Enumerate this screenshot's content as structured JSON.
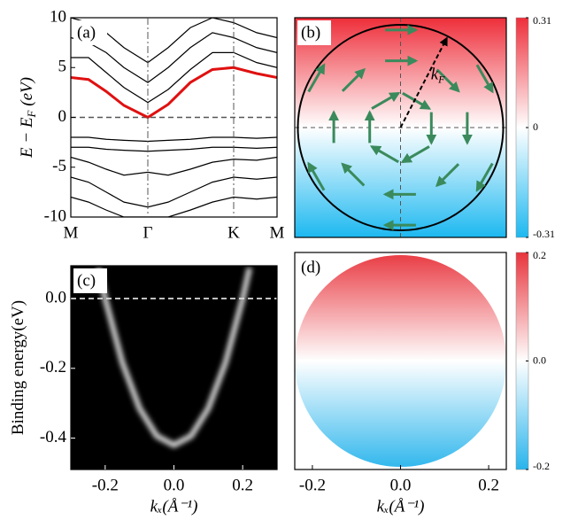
{
  "chart_data": [
    {
      "type": "line",
      "label": "(a)",
      "ylabel": [
        "E − E",
        "F",
        " (eV)"
      ],
      "x": [
        0,
        0.2,
        0.4,
        0.6,
        0.87,
        1.1,
        1.35,
        1.6,
        1.84,
        2.1,
        2.33
      ],
      "xlim": [
        0,
        2.33
      ],
      "xticks": [
        {
          "value": 0,
          "label": "M"
        },
        {
          "value": 0.87,
          "label": "Γ"
        },
        {
          "value": 1.84,
          "label": "K"
        },
        {
          "value": 2.33,
          "label": "M"
        }
      ],
      "ylim": [
        -10,
        10
      ],
      "yticks": [
        10,
        5,
        0,
        -5,
        -10
      ],
      "hline": {
        "y": 0,
        "color": "#555555"
      },
      "background": "#ffffff",
      "series": [
        {
          "color": "#000000",
          "values": [
            6,
            6,
            4.5,
            3,
            1.5,
            2.8,
            4.8,
            6.5,
            6.5,
            5.5,
            5
          ]
        },
        {
          "color": "#000000",
          "values": [
            8,
            7.5,
            6.5,
            5,
            3.5,
            5,
            7,
            8.5,
            8,
            7,
            6.5
          ]
        },
        {
          "color": "#000000",
          "values": [
            10,
            9.5,
            8.5,
            7,
            5.5,
            7,
            9,
            10,
            9.5,
            8.5,
            8
          ]
        },
        {
          "color": "#000000",
          "values": [
            -2,
            -2,
            -2.2,
            -2.3,
            -2.4,
            -2.3,
            -2.2,
            -2,
            -2,
            -2.1,
            -2
          ]
        },
        {
          "color": "#000000",
          "values": [
            -3,
            -3,
            -3.2,
            -3.3,
            -3.4,
            -3.3,
            -3.2,
            -3,
            -3,
            -3.1,
            -3
          ]
        },
        {
          "color": "#000000",
          "values": [
            -4,
            -4.5,
            -5.2,
            -5.8,
            -5.5,
            -5.8,
            -5.2,
            -4.5,
            -4.2,
            -4.3,
            -4
          ]
        },
        {
          "color": "#000000",
          "values": [
            -6,
            -6.5,
            -7.5,
            -8.5,
            -9,
            -8.5,
            -7.5,
            -6.5,
            -6,
            -6.2,
            -6
          ]
        },
        {
          "color": "#000000",
          "values": [
            -8,
            -8.5,
            -9.3,
            -10,
            -10,
            -10,
            -9.3,
            -8.5,
            -8,
            -8.2,
            -8
          ]
        },
        {
          "color": "#e01010",
          "values": [
            4,
            3.8,
            2.6,
            1.2,
            0,
            1.3,
            3.5,
            4.8,
            5,
            4.4,
            4
          ]
        }
      ]
    },
    {
      "type": "quiver",
      "label": "(b)",
      "xlim": [
        -1.03,
        1.03
      ],
      "ylim": [
        -1.07,
        1.07
      ],
      "colormap": [
        "#ee2e3a",
        "#ffffff",
        "#1cb8f0"
      ],
      "arrow_color": "#3a8a5c",
      "circle_radius": 1,
      "annotation": {
        "text": [
          "k",
          "F"
        ],
        "x": 0.45,
        "y": 0.87
      },
      "colorbar": {
        "zlim": [
          -0.31,
          0.31
        ],
        "zticks": [
          0.31,
          0,
          -0.31
        ]
      },
      "arrows": [
        {
          "x": 0.3,
          "y": 0,
          "u": 0,
          "v": -0.3
        },
        {
          "x": 0.15,
          "y": 0.26,
          "u": 0.26,
          "v": -0.15
        },
        {
          "x": -0.15,
          "y": 0.26,
          "u": 0.26,
          "v": 0.15
        },
        {
          "x": -0.3,
          "y": 0,
          "u": 0,
          "v": 0.3
        },
        {
          "x": -0.15,
          "y": -0.26,
          "u": -0.26,
          "v": 0.15
        },
        {
          "x": 0.15,
          "y": -0.26,
          "u": -0.26,
          "v": -0.15
        },
        {
          "x": 0.65,
          "y": 0,
          "u": 0,
          "v": -0.3
        },
        {
          "x": 0.46,
          "y": 0.46,
          "u": 0.21,
          "v": -0.21
        },
        {
          "x": 0,
          "y": 0.65,
          "u": 0.3,
          "v": 0
        },
        {
          "x": -0.46,
          "y": 0.46,
          "u": 0.21,
          "v": 0.21
        },
        {
          "x": -0.65,
          "y": 0,
          "u": 0,
          "v": 0.3
        },
        {
          "x": -0.46,
          "y": -0.46,
          "u": -0.21,
          "v": 0.21
        },
        {
          "x": 0,
          "y": -0.65,
          "u": -0.3,
          "v": 0
        },
        {
          "x": 0.46,
          "y": -0.46,
          "u": -0.21,
          "v": -0.21
        },
        {
          "x": 0.82,
          "y": 0.48,
          "u": 0.15,
          "v": -0.26
        },
        {
          "x": 0,
          "y": 0.95,
          "u": 0.3,
          "v": 0
        },
        {
          "x": -0.82,
          "y": 0.48,
          "u": 0.15,
          "v": 0.26
        },
        {
          "x": -0.82,
          "y": -0.48,
          "u": -0.15,
          "v": 0.26
        },
        {
          "x": 0,
          "y": -0.95,
          "u": -0.3,
          "v": 0
        },
        {
          "x": 0.82,
          "y": -0.48,
          "u": -0.15,
          "v": -0.26
        }
      ]
    },
    {
      "type": "line",
      "label": "(c)",
      "ylabel": [
        "Binding energy(eV)"
      ],
      "xlabel": "kₓ(Å⁻¹)",
      "x": [
        -0.22,
        -0.2,
        -0.15,
        -0.1,
        -0.05,
        0,
        0.05,
        0.1,
        0.15,
        0.2,
        0.22
      ],
      "xlim": [
        -0.3,
        0.3
      ],
      "xticks": [
        -0.2,
        {
          "value": 0,
          "label": "0.0"
        },
        0.2
      ],
      "ylim": [
        -0.49,
        0.094
      ],
      "yticks": [
        {
          "value": 0,
          "label": "0.0"
        },
        -0.2,
        -0.4
      ],
      "hline": {
        "y": 0,
        "color": "#ffffff"
      },
      "background": "#000000",
      "series": [
        {
          "color": "#dddddd",
          "values": [
            0.088,
            0,
            -0.184,
            -0.315,
            -0.394,
            -0.42,
            -0.394,
            -0.315,
            -0.184,
            0,
            0.088
          ]
        }
      ]
    },
    {
      "type": "heatmap",
      "label": "(d)",
      "xlabel": "kₓ(Å⁻¹)",
      "xlim": [
        -0.24,
        0.24
      ],
      "ylim": [
        -0.245,
        0.245
      ],
      "xticks": [
        -0.2,
        {
          "value": 0,
          "label": "0.0"
        },
        0.2
      ],
      "radius": 0.24,
      "colormap": [
        "#e8343c",
        "#ffffff",
        "#28b4ec"
      ],
      "colorbar": {
        "zlim": [
          -0.2,
          0.2
        ],
        "zticks": [
          0.2,
          {
            "value": 0,
            "label": "0.0"
          },
          -0.2
        ]
      }
    }
  ]
}
